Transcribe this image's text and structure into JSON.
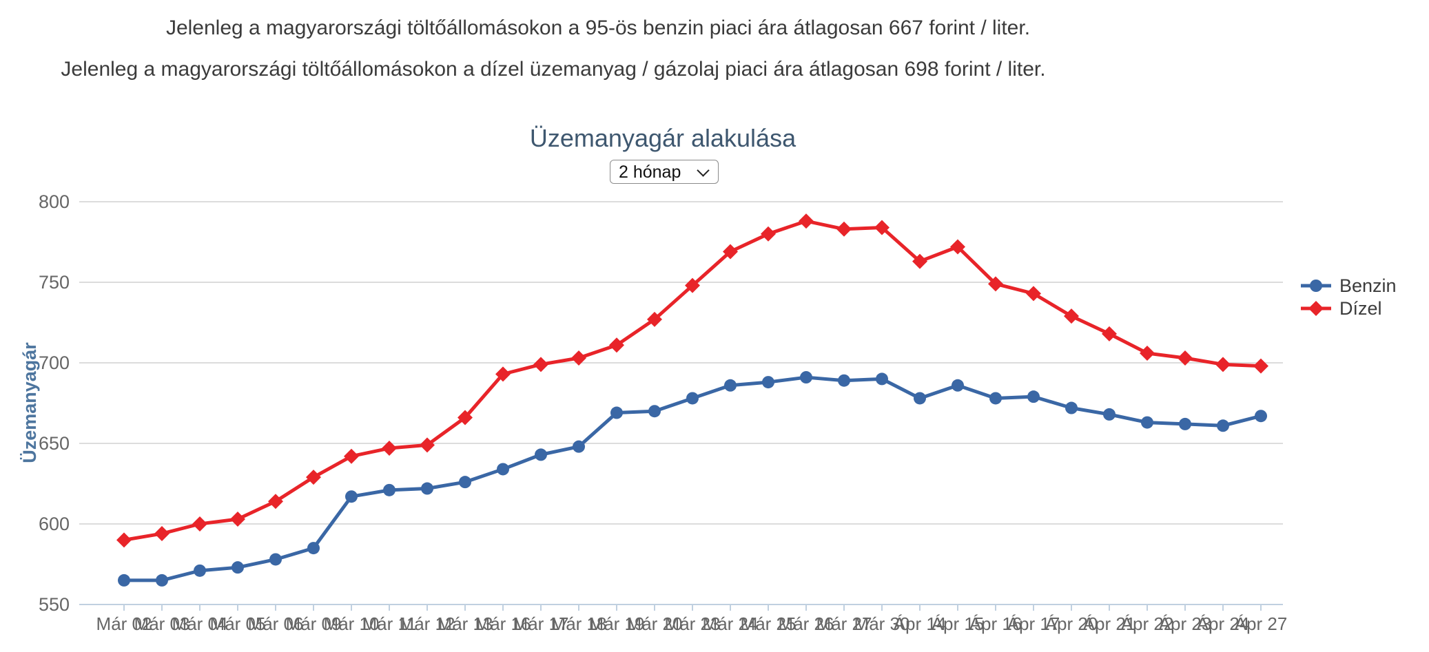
{
  "header": {
    "line1": "Jelenleg a magyarországi töltőállomásokon a 95-ös benzin piaci ára átlagosan 667 forint / liter.",
    "line2": "Jelenleg a magyarországi töltőállomásokon a dízel üzemanyag / gázolaj piaci ára átlagosan 698 forint / liter."
  },
  "chart": {
    "title": "Üzemanyagár alakulása",
    "range_selector": {
      "value": "2 hónap",
      "options": [
        "2 hónap"
      ]
    }
  },
  "chart_data": {
    "type": "line",
    "title": "Üzemanyagár alakulása",
    "xlabel": "",
    "ylabel": "Üzemanyagár",
    "ylim": [
      550,
      800
    ],
    "yticks": [
      550,
      600,
      650,
      700,
      750,
      800
    ],
    "grid": true,
    "legend_position": "right",
    "categories": [
      "Már 02",
      "Már 03",
      "Már 04",
      "Már 05",
      "Már 06",
      "Már 09",
      "Már 10",
      "Már 11",
      "Már 12",
      "Már 13",
      "Már 16",
      "Már 17",
      "Már 18",
      "Már 19",
      "Már 20",
      "Már 23",
      "Már 24",
      "Már 25",
      "Már 26",
      "Már 27",
      "Már 30",
      "Ápr 14",
      "Ápr 15",
      "Ápr 16",
      "Ápr 17",
      "Ápr 20",
      "Ápr 21",
      "Ápr 22",
      "Ápr 23",
      "Ápr 24",
      "Ápr 27"
    ],
    "series": [
      {
        "name": "Benzin",
        "color": "#3a67a5",
        "marker": "circle",
        "values": [
          565,
          565,
          571,
          573,
          578,
          585,
          617,
          621,
          622,
          626,
          634,
          643,
          648,
          669,
          670,
          678,
          686,
          688,
          691,
          689,
          690,
          678,
          686,
          678,
          679,
          672,
          668,
          663,
          662,
          661,
          667
        ]
      },
      {
        "name": "Dízel",
        "color": "#e82429",
        "marker": "diamond",
        "values": [
          590,
          594,
          600,
          603,
          614,
          629,
          642,
          647,
          649,
          666,
          693,
          699,
          703,
          711,
          727,
          748,
          769,
          780,
          788,
          783,
          784,
          763,
          772,
          749,
          743,
          729,
          718,
          706,
          703,
          699,
          698
        ]
      }
    ],
    "colors": {
      "grid_line": "#d1d1d1",
      "axis_line": "#C0D0E0",
      "tick_label": "#666666",
      "y_axis_title": "#4d759e",
      "legend_text": "#3c3c3c",
      "title": "#3E576F"
    }
  }
}
